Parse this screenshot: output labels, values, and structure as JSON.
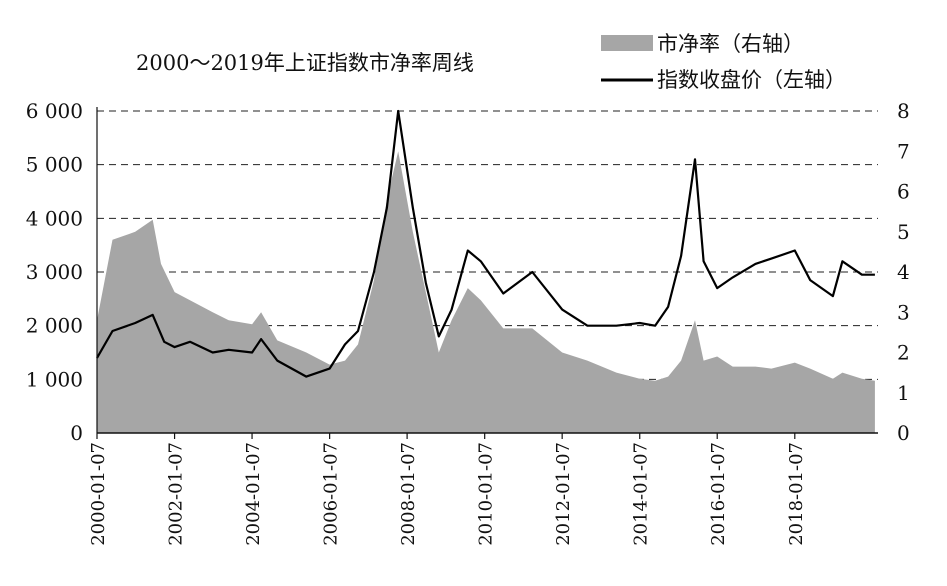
{
  "chart_data": {
    "type": "area+line",
    "title": "2000～2019年上证指数市净率周线",
    "x_ticks": [
      "2000-01-07",
      "2002-01-07",
      "2004-01-07",
      "2006-01-07",
      "2008-01-07",
      "2010-01-07",
      "2012-01-07",
      "2014-01-07",
      "2016-01-07",
      "2018-01-07"
    ],
    "x_range": [
      "2000-01-07",
      "2020-03-01"
    ],
    "left_axis": {
      "ticks": [
        "0",
        "1 000",
        "2 000",
        "3 000",
        "4 000",
        "5 000",
        "6 000"
      ],
      "ylim": [
        0,
        6000
      ]
    },
    "right_axis": {
      "ticks": [
        "0",
        "1",
        "2",
        "3",
        "4",
        "5",
        "6",
        "7",
        "8"
      ],
      "ylim": [
        0,
        8
      ]
    },
    "grid": "dashed horizontal",
    "legend_placement": "top-right",
    "colors": {
      "pb_fill": "#a6a6a6",
      "index_line": "#000000"
    },
    "series": [
      {
        "name": "市净率（右轴）",
        "axis": "right",
        "style": "area",
        "x": [
          "2000-01-07",
          "2000-06-01",
          "2001-01-01",
          "2001-06-15",
          "2001-09-01",
          "2002-01-07",
          "2002-06-01",
          "2003-01-01",
          "2003-06-01",
          "2004-01-07",
          "2004-04-01",
          "2004-09-01",
          "2005-06-01",
          "2006-01-07",
          "2006-06-01",
          "2006-10-01",
          "2007-03-01",
          "2007-07-01",
          "2007-10-15",
          "2008-03-01",
          "2008-07-01",
          "2008-11-01",
          "2009-03-01",
          "2009-08-01",
          "2009-12-01",
          "2010-07-01",
          "2011-04-01",
          "2012-01-07",
          "2012-09-01",
          "2013-06-01",
          "2014-01-07",
          "2014-06-01",
          "2014-10-01",
          "2015-02-01",
          "2015-06-12",
          "2015-09-01",
          "2016-01-07",
          "2016-06-01",
          "2017-01-01",
          "2017-06-01",
          "2018-01-07",
          "2018-06-01",
          "2019-01-01",
          "2019-04-01",
          "2019-10-01",
          "2020-02-01"
        ],
        "values": [
          2.8,
          4.8,
          5.0,
          5.3,
          4.2,
          3.5,
          3.3,
          3.0,
          2.8,
          2.7,
          3.0,
          2.3,
          2.0,
          1.7,
          1.8,
          2.2,
          3.8,
          5.8,
          7.0,
          5.0,
          3.5,
          2.0,
          2.8,
          3.6,
          3.3,
          2.6,
          2.6,
          2.0,
          1.8,
          1.5,
          1.35,
          1.3,
          1.4,
          1.8,
          2.8,
          1.8,
          1.9,
          1.65,
          1.65,
          1.6,
          1.75,
          1.6,
          1.35,
          1.5,
          1.35,
          1.3
        ]
      },
      {
        "name": "指数收盘价（左轴）",
        "axis": "left",
        "style": "line",
        "x": [
          "2000-01-07",
          "2000-06-01",
          "2001-01-01",
          "2001-06-15",
          "2001-10-01",
          "2002-01-07",
          "2002-06-01",
          "2003-01-01",
          "2003-06-01",
          "2004-01-07",
          "2004-04-01",
          "2004-09-01",
          "2005-06-01",
          "2006-01-07",
          "2006-06-01",
          "2006-10-01",
          "2007-03-01",
          "2007-07-01",
          "2007-10-15",
          "2008-03-01",
          "2008-07-01",
          "2008-11-01",
          "2009-03-01",
          "2009-08-01",
          "2009-12-01",
          "2010-07-01",
          "2011-04-01",
          "2012-01-07",
          "2012-09-01",
          "2013-06-01",
          "2014-01-07",
          "2014-06-01",
          "2014-10-01",
          "2015-02-01",
          "2015-06-12",
          "2015-09-01",
          "2016-01-07",
          "2016-06-01",
          "2017-01-01",
          "2017-06-01",
          "2018-01-07",
          "2018-06-01",
          "2019-01-01",
          "2019-04-01",
          "2019-10-01",
          "2020-02-01"
        ],
        "values": [
          1400,
          1900,
          2050,
          2200,
          1700,
          1600,
          1700,
          1500,
          1550,
          1500,
          1750,
          1350,
          1050,
          1200,
          1650,
          1900,
          3000,
          4200,
          6000,
          4200,
          2800,
          1800,
          2300,
          3400,
          3200,
          2600,
          3000,
          2300,
          2000,
          2000,
          2050,
          2000,
          2350,
          3300,
          5100,
          3200,
          2700,
          2900,
          3150,
          3250,
          3400,
          2850,
          2550,
          3200,
          2950,
          2950
        ]
      }
    ]
  }
}
